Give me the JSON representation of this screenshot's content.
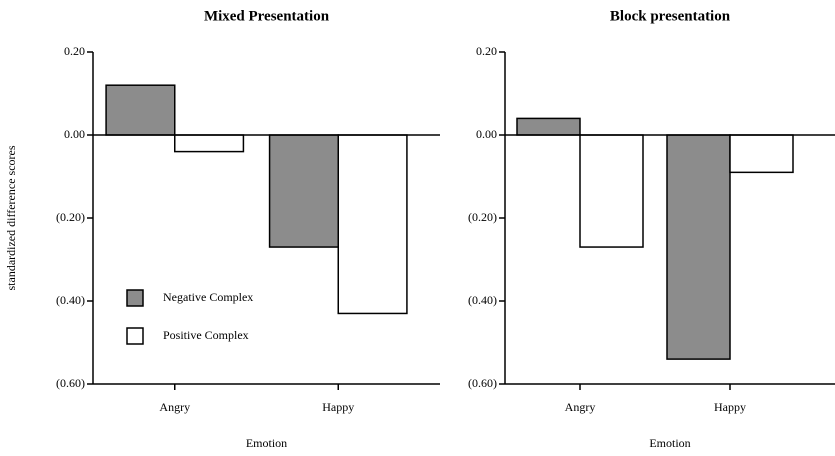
{
  "chart_data": [
    {
      "type": "bar",
      "title": "Mixed Presentation",
      "ylabel": "standardized difference scores",
      "xlabel": "Emotion",
      "categories": [
        "Angry",
        "Happy"
      ],
      "series": [
        {
          "name": "Negative Complex",
          "color": "#8c8c8c",
          "values": [
            0.12,
            -0.27
          ]
        },
        {
          "name": "Positive Complex",
          "color": "#ffffff",
          "values": [
            -0.04,
            -0.43
          ]
        }
      ],
      "ylim": [
        -0.6,
        0.2
      ],
      "yticks": [
        {
          "value": 0.2,
          "label": "0.20"
        },
        {
          "value": 0,
          "label": "0.00"
        },
        {
          "value": -0.2,
          "label": "(0.20)"
        },
        {
          "value": -0.4,
          "label": "(0.40)"
        },
        {
          "value": -0.6,
          "label": "(0.60)"
        }
      ],
      "legend": "lower left"
    },
    {
      "type": "bar",
      "title": "Block presentation",
      "xlabel": "Emotion",
      "categories": [
        "Angry",
        "Happy"
      ],
      "series": [
        {
          "color": "#8c8c8c",
          "values": [
            0.04,
            -0.54
          ]
        },
        {
          "color": "#ffffff",
          "values": [
            -0.27,
            -0.09
          ]
        }
      ],
      "ylim": [
        -0.6,
        0.2
      ],
      "yticks": [
        {
          "value": 0.2,
          "label": "0.20"
        },
        {
          "value": 0,
          "label": "0.00"
        },
        {
          "value": -0.2,
          "label": "(0.20)"
        },
        {
          "value": -0.4,
          "label": "(0.40)"
        },
        {
          "value": -0.6,
          "label": "(0.60)"
        }
      ]
    }
  ]
}
